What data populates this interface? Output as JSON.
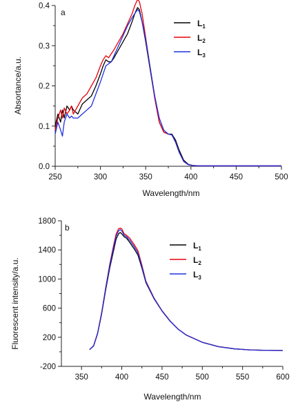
{
  "chart_data": [
    {
      "panel_label": "a",
      "type": "line",
      "xlabel": "Wavelength/nm",
      "ylabel": "Absortance/a.u.",
      "xlim": [
        250,
        500
      ],
      "ylim": [
        0,
        0.4
      ],
      "xticks": [
        250,
        300,
        350,
        400,
        450,
        500
      ],
      "yticks": [
        0.0,
        0.1,
        0.2,
        0.3,
        0.4
      ],
      "ytick_labels": [
        "0.0",
        "0.1",
        "0.2",
        "0.3",
        "0.4"
      ],
      "grid": false,
      "legend_position": "top-right",
      "series": [
        {
          "name": "L1",
          "name_main": "L",
          "name_sub": "1",
          "color": "#000000",
          "x": [
            250,
            253,
            256,
            258,
            260,
            263,
            266,
            268,
            270,
            275,
            280,
            285,
            290,
            295,
            300,
            303,
            306,
            309,
            312,
            315,
            320,
            325,
            330,
            335,
            338,
            341,
            343,
            346,
            350,
            355,
            360,
            365,
            370,
            375,
            379,
            383,
            387,
            392,
            397,
            402,
            410,
            420,
            450,
            480,
            500
          ],
          "y": [
            0.1,
            0.13,
            0.11,
            0.14,
            0.12,
            0.15,
            0.14,
            0.15,
            0.14,
            0.13,
            0.155,
            0.165,
            0.175,
            0.2,
            0.23,
            0.25,
            0.265,
            0.26,
            0.26,
            0.27,
            0.29,
            0.31,
            0.33,
            0.36,
            0.38,
            0.395,
            0.39,
            0.36,
            0.31,
            0.24,
            0.17,
            0.11,
            0.085,
            0.08,
            0.08,
            0.065,
            0.04,
            0.015,
            0.005,
            0.002,
            0.001,
            0.001,
            0.001,
            0.001,
            0.001
          ]
        },
        {
          "name": "L2",
          "name_main": "L",
          "name_sub": "2",
          "color": "#e8000b",
          "x": [
            250,
            253,
            256,
            258,
            260,
            263,
            266,
            268,
            270,
            275,
            280,
            285,
            290,
            295,
            300,
            303,
            306,
            309,
            312,
            315,
            320,
            325,
            330,
            335,
            338,
            341,
            343,
            346,
            350,
            355,
            360,
            365,
            370,
            375,
            379,
            383,
            387,
            392,
            397,
            402,
            410,
            420,
            450,
            480,
            500
          ],
          "y": [
            0.09,
            0.12,
            0.14,
            0.12,
            0.145,
            0.13,
            0.14,
            0.15,
            0.13,
            0.15,
            0.17,
            0.18,
            0.2,
            0.22,
            0.25,
            0.265,
            0.275,
            0.27,
            0.28,
            0.29,
            0.31,
            0.33,
            0.355,
            0.38,
            0.4,
            0.415,
            0.41,
            0.38,
            0.32,
            0.245,
            0.17,
            0.11,
            0.085,
            0.08,
            0.078,
            0.06,
            0.035,
            0.012,
            0.004,
            0.002,
            0.001,
            0.001,
            0.001,
            0.001,
            0.001
          ]
        },
        {
          "name": "L3",
          "name_main": "L",
          "name_sub": "3",
          "color": "#1f2fe0",
          "x": [
            250,
            253,
            256,
            258,
            260,
            263,
            266,
            268,
            270,
            275,
            280,
            285,
            290,
            295,
            300,
            303,
            306,
            309,
            312,
            315,
            320,
            325,
            330,
            335,
            338,
            341,
            343,
            346,
            350,
            355,
            360,
            365,
            370,
            375,
            379,
            383,
            387,
            392,
            397,
            402,
            410,
            420,
            450,
            480,
            500
          ],
          "y": [
            0.08,
            0.11,
            0.09,
            0.075,
            0.11,
            0.13,
            0.12,
            0.125,
            0.12,
            0.12,
            0.13,
            0.14,
            0.15,
            0.18,
            0.21,
            0.23,
            0.25,
            0.255,
            0.26,
            0.275,
            0.3,
            0.325,
            0.35,
            0.37,
            0.38,
            0.39,
            0.385,
            0.36,
            0.315,
            0.245,
            0.175,
            0.12,
            0.09,
            0.08,
            0.078,
            0.06,
            0.035,
            0.012,
            0.004,
            0.002,
            0.001,
            0.001,
            0.001,
            0.001,
            0.001
          ]
        }
      ]
    },
    {
      "panel_label": "b",
      "type": "line",
      "xlabel": "Wavelength/nm",
      "ylabel": "Fluorescent intensity/a.u.",
      "xlim": [
        325,
        600
      ],
      "ylim": [
        -200,
        1800
      ],
      "xticks": [
        350,
        400,
        450,
        500,
        550,
        600
      ],
      "yticks": [
        -200,
        200,
        600,
        1000,
        1400,
        1800
      ],
      "ytick_labels": [
        "-200",
        "200",
        "600",
        "1000",
        "1400",
        "1800"
      ],
      "grid": false,
      "legend_position": "top-right",
      "series": [
        {
          "name": "L1",
          "name_main": "L",
          "name_sub": "1",
          "color": "#000000",
          "x": [
            360,
            365,
            370,
            375,
            380,
            385,
            390,
            393,
            396,
            398,
            400,
            403,
            406,
            410,
            415,
            420,
            425,
            430,
            440,
            450,
            460,
            470,
            480,
            500,
            520,
            540,
            560,
            580,
            600
          ],
          "y": [
            30,
            80,
            250,
            520,
            850,
            1150,
            1400,
            1550,
            1620,
            1640,
            1620,
            1580,
            1560,
            1500,
            1420,
            1330,
            1150,
            950,
            730,
            560,
            420,
            310,
            230,
            130,
            70,
            40,
            25,
            20,
            18
          ]
        },
        {
          "name": "L2",
          "name_main": "L",
          "name_sub": "2",
          "color": "#e8000b",
          "x": [
            360,
            365,
            370,
            375,
            380,
            385,
            390,
            393,
            396,
            398,
            400,
            403,
            406,
            410,
            415,
            420,
            425,
            430,
            440,
            450,
            460,
            470,
            480,
            500,
            520,
            540,
            560,
            580,
            600
          ],
          "y": [
            30,
            85,
            260,
            540,
            880,
            1200,
            1470,
            1620,
            1690,
            1700,
            1690,
            1620,
            1600,
            1560,
            1480,
            1390,
            1190,
            970,
            740,
            565,
            425,
            312,
            232,
            132,
            72,
            42,
            26,
            20,
            18
          ]
        },
        {
          "name": "L3",
          "name_main": "L",
          "name_sub": "3",
          "color": "#1f2fe0",
          "x": [
            360,
            365,
            370,
            375,
            380,
            385,
            390,
            393,
            396,
            398,
            400,
            403,
            406,
            410,
            415,
            420,
            425,
            430,
            440,
            450,
            460,
            470,
            480,
            500,
            520,
            540,
            560,
            580,
            600
          ],
          "y": [
            30,
            82,
            255,
            530,
            870,
            1180,
            1440,
            1590,
            1660,
            1680,
            1660,
            1600,
            1580,
            1530,
            1450,
            1360,
            1170,
            960,
            735,
            562,
            422,
            311,
            231,
            131,
            71,
            41,
            25,
            20,
            18
          ]
        }
      ]
    }
  ]
}
